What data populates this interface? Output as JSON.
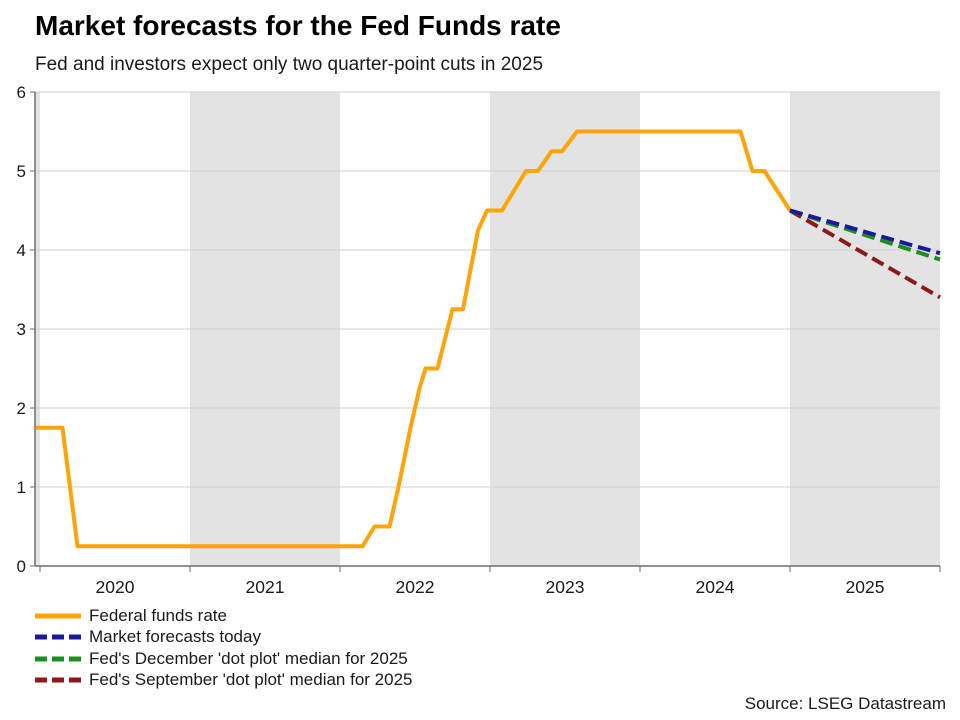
{
  "header": {
    "title": "Market forecasts for the Fed Funds rate",
    "subtitle": "Fed and investors expect only two quarter-point cuts in 2025"
  },
  "source": "Source: LSEG Datastream",
  "colors": {
    "federal_funds_rate": "#FFA408",
    "market_forecasts_today": "#1A1A99",
    "fed_december_dot_plot": "#1E8C1E",
    "fed_september_dot_plot": "#8C1A1A",
    "shade_band": "#E3E3E3",
    "gridline": "#D2D2D2",
    "axis": "#6E6E6E"
  },
  "legend": [
    {
      "label": "Federal funds rate",
      "color": "#FFA408",
      "dashed": false
    },
    {
      "label": "Market forecasts today",
      "color": "#1A1A99",
      "dashed": true
    },
    {
      "label": "Fed's December 'dot plot' median for 2025",
      "color": "#1E8C1E",
      "dashed": true
    },
    {
      "label": "Fed's September 'dot plot' median for 2025",
      "color": "#8C1A1A",
      "dashed": true
    }
  ],
  "chart_data": {
    "type": "line",
    "title": "Market forecasts for the Fed Funds rate",
    "subtitle": "Fed and investors expect only two quarter-point cuts in 2025",
    "xlabel": "",
    "ylabel": "",
    "x_range": [
      2019.97,
      2026.0
    ],
    "ylim": [
      0,
      6
    ],
    "y_ticks": [
      0,
      1,
      2,
      3,
      4,
      5,
      6
    ],
    "y_tick_labels": [
      "0",
      "1",
      "2",
      "3",
      "4",
      "5",
      "6"
    ],
    "x_year_boundaries": [
      2020,
      2021,
      2022,
      2023,
      2024,
      2025,
      2026
    ],
    "x_tick_labels": [
      "2020",
      "2021",
      "2022",
      "2023",
      "2024",
      "2025"
    ],
    "x_tick_label_centers": [
      2020.5,
      2021.5,
      2022.5,
      2023.5,
      2024.5,
      2025.5
    ],
    "shaded_x_bands": [
      [
        2019.97,
        2020.0
      ],
      [
        2021.0,
        2022.0
      ],
      [
        2023.0,
        2024.0
      ],
      [
        2025.0,
        2026.0
      ]
    ],
    "grid": true,
    "legend_position": "bottom-left",
    "series": [
      {
        "name": "Federal funds rate",
        "color": "#FFA408",
        "style": "solid",
        "points": [
          [
            2019.97,
            1.75
          ],
          [
            2020.15,
            1.75
          ],
          [
            2020.25,
            0.25
          ],
          [
            2022.15,
            0.25
          ],
          [
            2022.23,
            0.5
          ],
          [
            2022.33,
            0.5
          ],
          [
            2022.39,
            1.0
          ],
          [
            2022.47,
            1.75
          ],
          [
            2022.53,
            2.25
          ],
          [
            2022.57,
            2.5
          ],
          [
            2022.65,
            2.5
          ],
          [
            2022.75,
            3.25
          ],
          [
            2022.82,
            3.25
          ],
          [
            2022.92,
            4.25
          ],
          [
            2022.98,
            4.5
          ],
          [
            2023.08,
            4.5
          ],
          [
            2023.24,
            5.0
          ],
          [
            2023.32,
            5.0
          ],
          [
            2023.41,
            5.25
          ],
          [
            2023.48,
            5.25
          ],
          [
            2023.58,
            5.5
          ],
          [
            2024.67,
            5.5
          ],
          [
            2024.75,
            5.0
          ],
          [
            2024.83,
            5.0
          ],
          [
            2025.0,
            4.5
          ]
        ]
      },
      {
        "name": "Fed's September 'dot plot' median for 2025",
        "color": "#8C1A1A",
        "style": "dashed",
        "points": [
          [
            2025.0,
            4.5
          ],
          [
            2026.0,
            3.4
          ]
        ]
      },
      {
        "name": "Fed's December 'dot plot' median for 2025",
        "color": "#1E8C1E",
        "style": "dashed",
        "points": [
          [
            2025.0,
            4.5
          ],
          [
            2026.0,
            3.88
          ]
        ]
      },
      {
        "name": "Market forecasts today",
        "color": "#1A1A99",
        "style": "dashed",
        "points": [
          [
            2025.0,
            4.5
          ],
          [
            2026.0,
            3.96
          ]
        ]
      }
    ]
  }
}
